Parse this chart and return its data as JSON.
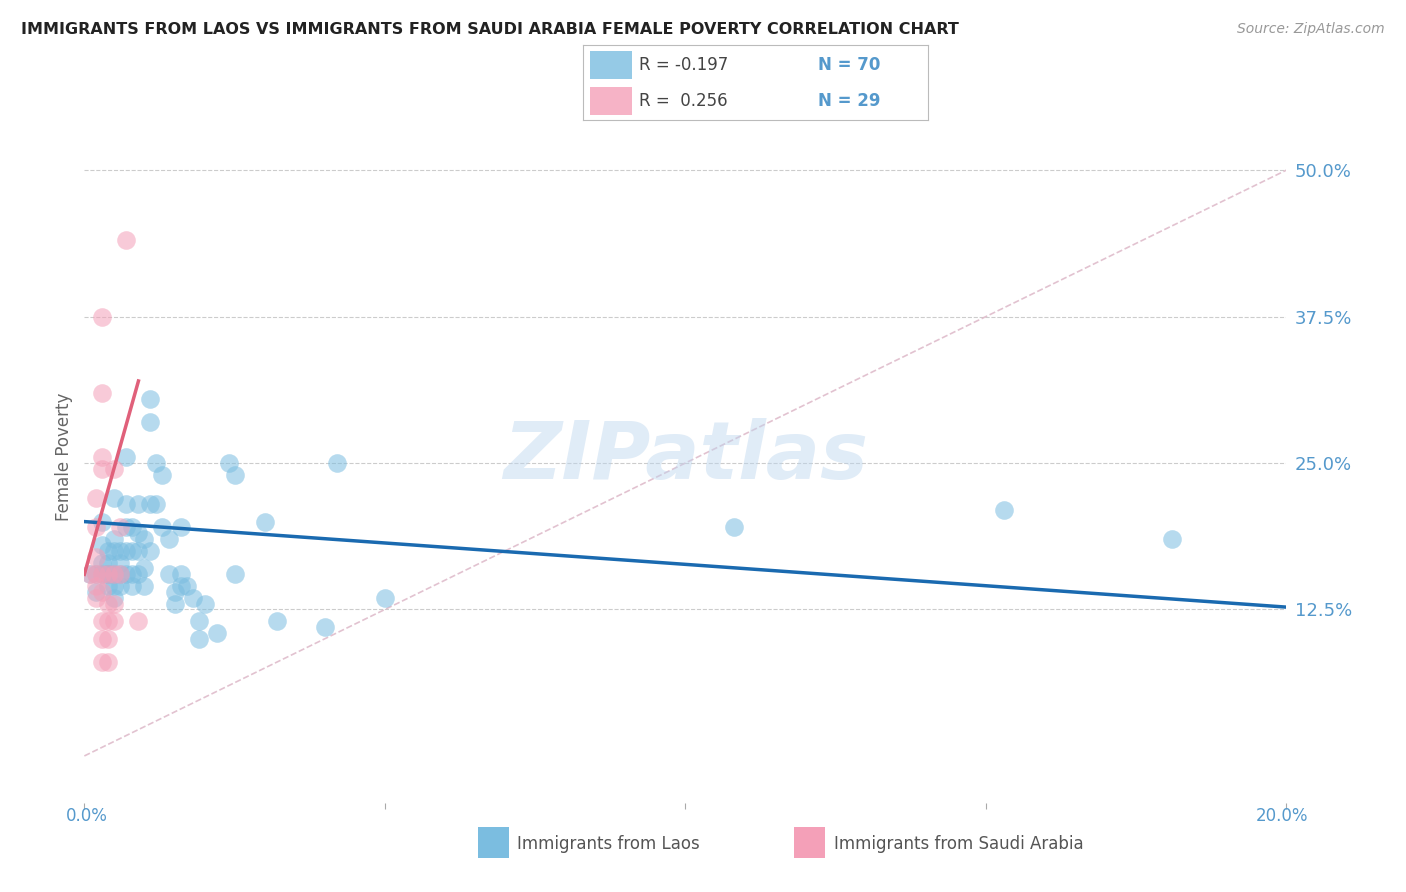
{
  "title": "IMMIGRANTS FROM LAOS VS IMMIGRANTS FROM SAUDI ARABIA FEMALE POVERTY CORRELATION CHART",
  "source": "Source: ZipAtlas.com",
  "ylabel": "Female Poverty",
  "color_blue": "#7bbde0",
  "color_pink": "#f4a0b8",
  "color_blue_line": "#1a6ab0",
  "color_pink_line": "#e0607a",
  "color_diag_line": "#ddb8c8",
  "color_ytick": "#5599cc",
  "color_label_bottom": "#5599cc",
  "watermark": "ZIPatlas",
  "xmin": 0.0,
  "xmax": 0.2,
  "ymin": -0.04,
  "ymax": 0.55,
  "ytick_values": [
    0.125,
    0.25,
    0.375,
    0.5
  ],
  "ytick_labels": [
    "12.5%",
    "25.0%",
    "37.5%",
    "50.0%"
  ],
  "laos_points": [
    [
      0.001,
      0.155
    ],
    [
      0.002,
      0.14
    ],
    [
      0.002,
      0.155
    ],
    [
      0.003,
      0.18
    ],
    [
      0.003,
      0.155
    ],
    [
      0.003,
      0.165
    ],
    [
      0.003,
      0.2
    ],
    [
      0.004,
      0.175
    ],
    [
      0.004,
      0.155
    ],
    [
      0.004,
      0.165
    ],
    [
      0.004,
      0.145
    ],
    [
      0.004,
      0.155
    ],
    [
      0.005,
      0.185
    ],
    [
      0.005,
      0.175
    ],
    [
      0.005,
      0.22
    ],
    [
      0.005,
      0.145
    ],
    [
      0.005,
      0.135
    ],
    [
      0.005,
      0.155
    ],
    [
      0.006,
      0.175
    ],
    [
      0.006,
      0.165
    ],
    [
      0.006,
      0.145
    ],
    [
      0.006,
      0.155
    ],
    [
      0.007,
      0.255
    ],
    [
      0.007,
      0.215
    ],
    [
      0.007,
      0.195
    ],
    [
      0.007,
      0.175
    ],
    [
      0.007,
      0.155
    ],
    [
      0.008,
      0.195
    ],
    [
      0.008,
      0.175
    ],
    [
      0.008,
      0.155
    ],
    [
      0.008,
      0.145
    ],
    [
      0.009,
      0.215
    ],
    [
      0.009,
      0.19
    ],
    [
      0.009,
      0.175
    ],
    [
      0.009,
      0.155
    ],
    [
      0.01,
      0.185
    ],
    [
      0.01,
      0.16
    ],
    [
      0.01,
      0.145
    ],
    [
      0.011,
      0.305
    ],
    [
      0.011,
      0.285
    ],
    [
      0.011,
      0.215
    ],
    [
      0.011,
      0.175
    ],
    [
      0.012,
      0.25
    ],
    [
      0.012,
      0.215
    ],
    [
      0.013,
      0.24
    ],
    [
      0.013,
      0.195
    ],
    [
      0.014,
      0.185
    ],
    [
      0.014,
      0.155
    ],
    [
      0.015,
      0.14
    ],
    [
      0.015,
      0.13
    ],
    [
      0.016,
      0.195
    ],
    [
      0.016,
      0.155
    ],
    [
      0.016,
      0.145
    ],
    [
      0.017,
      0.145
    ],
    [
      0.018,
      0.135
    ],
    [
      0.019,
      0.115
    ],
    [
      0.019,
      0.1
    ],
    [
      0.02,
      0.13
    ],
    [
      0.022,
      0.105
    ],
    [
      0.024,
      0.25
    ],
    [
      0.025,
      0.24
    ],
    [
      0.025,
      0.155
    ],
    [
      0.03,
      0.2
    ],
    [
      0.032,
      0.115
    ],
    [
      0.04,
      0.11
    ],
    [
      0.042,
      0.25
    ],
    [
      0.05,
      0.135
    ],
    [
      0.108,
      0.195
    ],
    [
      0.153,
      0.21
    ],
    [
      0.181,
      0.185
    ]
  ],
  "saudi_points": [
    [
      0.001,
      0.155
    ],
    [
      0.002,
      0.22
    ],
    [
      0.002,
      0.195
    ],
    [
      0.002,
      0.17
    ],
    [
      0.002,
      0.155
    ],
    [
      0.002,
      0.145
    ],
    [
      0.002,
      0.135
    ],
    [
      0.003,
      0.375
    ],
    [
      0.003,
      0.31
    ],
    [
      0.003,
      0.255
    ],
    [
      0.003,
      0.245
    ],
    [
      0.003,
      0.155
    ],
    [
      0.003,
      0.14
    ],
    [
      0.003,
      0.115
    ],
    [
      0.003,
      0.1
    ],
    [
      0.003,
      0.08
    ],
    [
      0.004,
      0.155
    ],
    [
      0.004,
      0.13
    ],
    [
      0.004,
      0.115
    ],
    [
      0.004,
      0.1
    ],
    [
      0.004,
      0.08
    ],
    [
      0.005,
      0.245
    ],
    [
      0.005,
      0.155
    ],
    [
      0.005,
      0.13
    ],
    [
      0.005,
      0.115
    ],
    [
      0.006,
      0.195
    ],
    [
      0.006,
      0.155
    ],
    [
      0.007,
      0.44
    ],
    [
      0.009,
      0.115
    ]
  ],
  "blue_line_x": [
    0.0,
    0.2
  ],
  "blue_line_y": [
    0.2,
    0.127
  ],
  "pink_line_x": [
    0.0,
    0.009
  ],
  "pink_line_y": [
    0.155,
    0.32
  ],
  "diag_line_x": [
    0.0,
    0.2
  ],
  "diag_line_y": [
    0.0,
    0.5
  ]
}
